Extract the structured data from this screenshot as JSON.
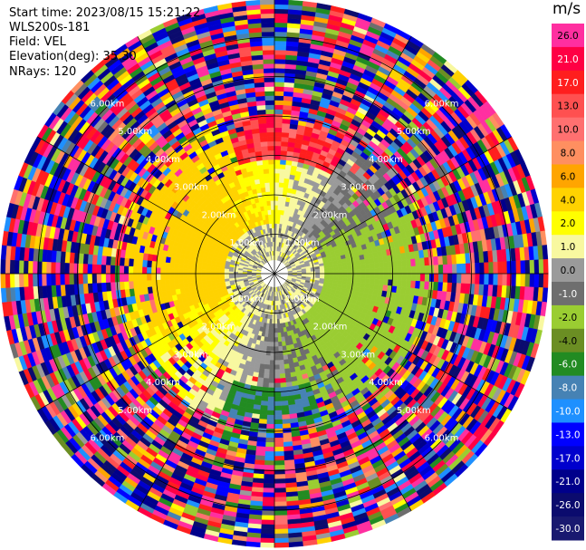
{
  "header": {
    "start_time": "Start time: 2023/08/15 15:21:22",
    "instrument": "WLS200s-181",
    "field": "Field: VEL",
    "elevation": "Elevation(deg): 35.30",
    "nrays": "NRays: 120"
  },
  "colorbar": {
    "unit": "m/s",
    "ticks": [
      "26.0",
      "21.0",
      "17.0",
      "13.0",
      "10.0",
      "8.0",
      "6.0",
      "4.0",
      "2.0",
      "1.0",
      "0.0",
      "-1.0",
      "-2.0",
      "-4.0",
      "-6.0",
      "-8.0",
      "-10.0",
      "-13.0",
      "-17.0",
      "-21.0",
      "-26.0",
      "-30.0"
    ],
    "colors": [
      "#ff2fa0",
      "#ff0044",
      "#ff1e1e",
      "#ff5050",
      "#ff7070",
      "#ff8f60",
      "#ffa500",
      "#ffd200",
      "#ffff00",
      "#f8f8a0",
      "#9a9a9a",
      "#6e6e6e",
      "#9acd32",
      "#6b8e23",
      "#228b22",
      "#4682b4",
      "#1e90ff",
      "#0000ff",
      "#0000cd",
      "#00008b",
      "#0b0b6e",
      "#191970"
    ]
  },
  "chart_data": {
    "type": "heatmap",
    "projection": "polar-ppi",
    "nrays": 120,
    "field": "VEL",
    "unit": "m/s",
    "range_rings_km": [
      1,
      2,
      3,
      4,
      5,
      6
    ],
    "range_ring_labels": [
      "1.00km",
      "2.00km",
      "3.00km",
      "4.00km",
      "5.00km",
      "6.00km"
    ],
    "azimuth_lines_deg": [
      0,
      30,
      60,
      90,
      120,
      150,
      180,
      210,
      240,
      270,
      300,
      330
    ],
    "legend_placement": "right",
    "velocity_regions": [
      {
        "region": "near-field east/north-east",
        "velocity_range": [
          -4.0,
          -1.0
        ]
      },
      {
        "region": "near-field west/south-west",
        "velocity_range": [
          1.0,
          4.0
        ]
      },
      {
        "region": "near-field centre",
        "velocity_range": [
          -1.0,
          1.0
        ]
      },
      {
        "region": "far field beyond ~3.5 km",
        "velocity_range": [
          -30.0,
          26.0
        ]
      }
    ]
  }
}
